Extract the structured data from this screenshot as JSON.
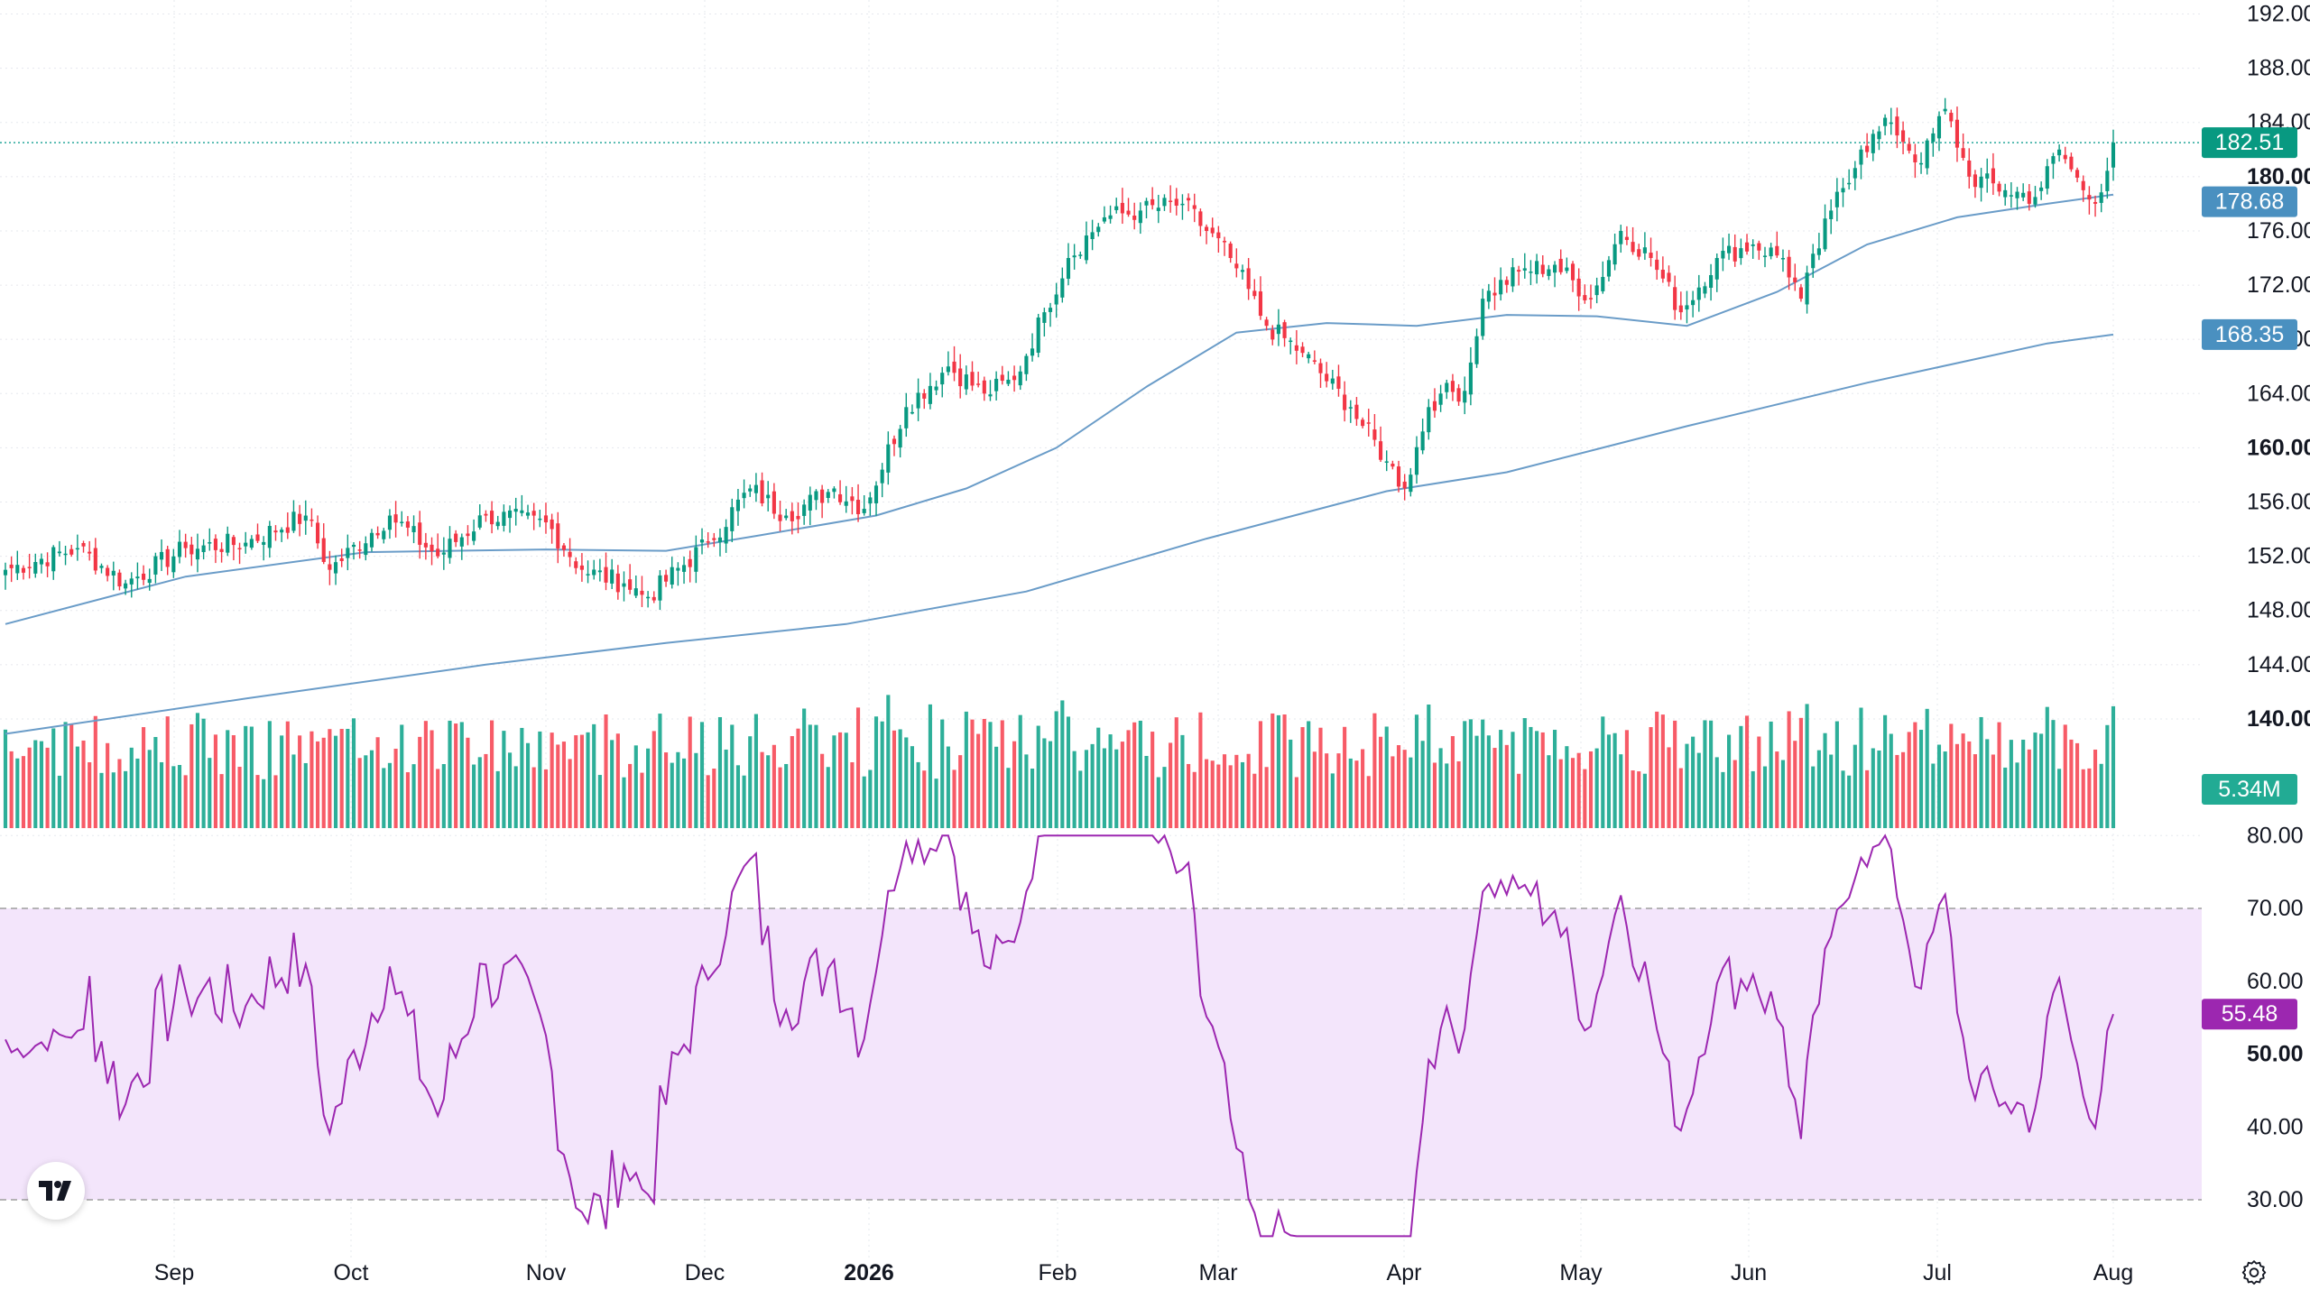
{
  "chart_data": {
    "type": "candlestick",
    "price_axis": {
      "ticks": [
        "192.00",
        "188.00",
        "184.00",
        "180.00",
        "176.00",
        "172.00",
        "168.00",
        "164.00",
        "160.00",
        "156.00",
        "152.00",
        "148.00",
        "144.00",
        "140.00"
      ],
      "bold_ticks": [
        "180.00",
        "160.00",
        "140.00"
      ],
      "range": [
        138.6,
        192.5
      ]
    },
    "time_axis": {
      "labels": [
        {
          "text": "Sep",
          "bold": false
        },
        {
          "text": "Oct",
          "bold": false
        },
        {
          "text": "Nov",
          "bold": false
        },
        {
          "text": "Dec",
          "bold": false
        },
        {
          "text": "2026",
          "bold": true
        },
        {
          "text": "Feb",
          "bold": false
        },
        {
          "text": "Mar",
          "bold": false
        },
        {
          "text": "Apr",
          "bold": false
        },
        {
          "text": "May",
          "bold": false
        },
        {
          "text": "Jun",
          "bold": false
        },
        {
          "text": "Jul",
          "bold": false
        },
        {
          "text": "Aug",
          "bold": false
        }
      ]
    },
    "last_price": "182.51",
    "ma_short_last": "178.68",
    "ma_long_last": "168.35",
    "volume_last": "5.34M",
    "rsi": {
      "ticks": [
        "80.00",
        "70.00",
        "60.00",
        "50.00",
        "40.00",
        "30.00"
      ],
      "bold_ticks": [
        "50.00"
      ],
      "upper_band": 70,
      "lower_band": 30,
      "last": "55.48"
    },
    "anchors": [
      {
        "t": 0,
        "c": 151.0
      },
      {
        "t": 12,
        "c": 152.6
      },
      {
        "t": 20,
        "c": 150.0
      },
      {
        "t": 30,
        "c": 152.6
      },
      {
        "t": 40,
        "c": 153.0
      },
      {
        "t": 50,
        "c": 155.0
      },
      {
        "t": 54,
        "c": 151.0
      },
      {
        "t": 64,
        "c": 155.0
      },
      {
        "t": 72,
        "c": 152.0
      },
      {
        "t": 80,
        "c": 155.0
      },
      {
        "t": 90,
        "c": 154.5
      },
      {
        "t": 96,
        "c": 151.0
      },
      {
        "t": 103,
        "c": 150.0
      },
      {
        "t": 107,
        "c": 149.0
      },
      {
        "t": 117,
        "c": 153.0
      },
      {
        "t": 124,
        "c": 157.0
      },
      {
        "t": 130,
        "c": 155.0
      },
      {
        "t": 138,
        "c": 157.0
      },
      {
        "t": 143,
        "c": 155.5
      },
      {
        "t": 150,
        "c": 163.0
      },
      {
        "t": 157,
        "c": 166.0
      },
      {
        "t": 163,
        "c": 164.0
      },
      {
        "t": 168,
        "c": 165.0
      },
      {
        "t": 173,
        "c": 170.0
      },
      {
        "t": 177,
        "c": 174.0
      },
      {
        "t": 183,
        "c": 177.0
      },
      {
        "t": 189,
        "c": 177.5
      },
      {
        "t": 196,
        "c": 178.0
      },
      {
        "t": 204,
        "c": 174.0
      },
      {
        "t": 210,
        "c": 169.0
      },
      {
        "t": 216,
        "c": 167.0
      },
      {
        "t": 224,
        "c": 163.0
      },
      {
        "t": 230,
        "c": 159.0
      },
      {
        "t": 233,
        "c": 157.0
      },
      {
        "t": 237,
        "c": 163.0
      },
      {
        "t": 239,
        "c": 164.0
      },
      {
        "t": 243,
        "c": 164.2
      },
      {
        "t": 246,
        "c": 171.0
      },
      {
        "t": 252,
        "c": 173.0
      },
      {
        "t": 258,
        "c": 173.5
      },
      {
        "t": 264,
        "c": 171.0
      },
      {
        "t": 269,
        "c": 176.0
      },
      {
        "t": 274,
        "c": 174.0
      },
      {
        "t": 279,
        "c": 170.0
      },
      {
        "t": 285,
        "c": 174.0
      },
      {
        "t": 291,
        "c": 175.0
      },
      {
        "t": 296,
        "c": 174.0
      },
      {
        "t": 299,
        "c": 171.0
      },
      {
        "t": 304,
        "c": 177.5
      },
      {
        "t": 309,
        "c": 182.0
      },
      {
        "t": 314,
        "c": 184.0
      },
      {
        "t": 319,
        "c": 181.0
      },
      {
        "t": 323,
        "c": 185.0
      },
      {
        "t": 327,
        "c": 180.0
      },
      {
        "t": 333,
        "c": 179.0
      },
      {
        "t": 338,
        "c": 178.5
      },
      {
        "t": 342,
        "c": 182.0
      },
      {
        "t": 346,
        "c": 179.0
      },
      {
        "t": 348,
        "c": 178.0
      },
      {
        "t": 351,
        "c": 182.51
      }
    ],
    "ma_short_points": [
      {
        "t": 0,
        "v": 147.0
      },
      {
        "t": 30,
        "v": 150.5
      },
      {
        "t": 60,
        "v": 152.3
      },
      {
        "t": 90,
        "v": 152.5
      },
      {
        "t": 110,
        "v": 152.4
      },
      {
        "t": 125,
        "v": 153.5
      },
      {
        "t": 145,
        "v": 155.0
      },
      {
        "t": 160,
        "v": 157.0
      },
      {
        "t": 175,
        "v": 160.0
      },
      {
        "t": 190,
        "v": 164.5
      },
      {
        "t": 205,
        "v": 168.5
      },
      {
        "t": 220,
        "v": 169.2
      },
      {
        "t": 235,
        "v": 169.0
      },
      {
        "t": 250,
        "v": 169.8
      },
      {
        "t": 265,
        "v": 169.7
      },
      {
        "t": 280,
        "v": 169.0
      },
      {
        "t": 295,
        "v": 171.5
      },
      {
        "t": 310,
        "v": 175.0
      },
      {
        "t": 325,
        "v": 177.0
      },
      {
        "t": 340,
        "v": 178.0
      },
      {
        "t": 351,
        "v": 178.68
      }
    ],
    "ma_long_points": [
      {
        "t": 0,
        "v": 138.9
      },
      {
        "t": 40,
        "v": 141.5
      },
      {
        "t": 80,
        "v": 144.0
      },
      {
        "t": 110,
        "v": 145.6
      },
      {
        "t": 140,
        "v": 147.0
      },
      {
        "t": 170,
        "v": 149.4
      },
      {
        "t": 200,
        "v": 153.3
      },
      {
        "t": 230,
        "v": 156.8
      },
      {
        "t": 250,
        "v": 158.2
      },
      {
        "t": 280,
        "v": 161.6
      },
      {
        "t": 310,
        "v": 164.8
      },
      {
        "t": 340,
        "v": 167.7
      },
      {
        "t": 351,
        "v": 168.35
      }
    ]
  },
  "colors": {
    "up": "#26a69a",
    "up_candle": "#089981",
    "down": "#f23645",
    "vol_up": "#22ab94",
    "vol_down": "#f7525f",
    "ma": "#6a9cc8",
    "rsi_line": "#9c27b0",
    "rsi_band": "#f3e5fb",
    "last_price_bg": "#089981",
    "ma_short_bg": "#4a90c0",
    "ma_long_bg": "#4a90c0",
    "volume_bg": "#22ab94",
    "rsi_label_bg": "#9c27b0"
  },
  "icons": {
    "logo": "tradingview-logo-icon",
    "settings": "gear-icon"
  }
}
